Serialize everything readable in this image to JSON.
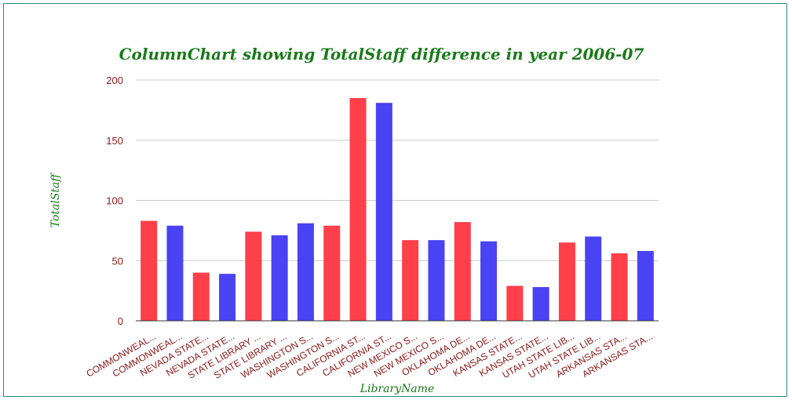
{
  "chart_data": {
    "type": "bar",
    "title": "ColumnChart showing TotalStaff difference in year 2006-07",
    "xlabel": "LibraryName",
    "ylabel": "TotalStaff",
    "ylim": [
      0,
      200
    ],
    "yticks": [
      "0",
      "50",
      "100",
      "150",
      "200"
    ],
    "grid": true,
    "categories": [
      "COMMONWEAL...",
      "COMMONWEAL...",
      "NEVADA STATE...",
      "NEVADA STATE...",
      "STATE LIBRARY ...",
      "STATE LIBRARY ...",
      "WASHINGTON S...",
      "WASHINGTON S...",
      "CALIFORNIA ST...",
      "CALIFORNIA ST...",
      "NEW MEXICO S...",
      "NEW MEXICO S...",
      "OKLAHOMA DE...",
      "OKLAHOMA DE...",
      "KANSAS STATE...",
      "KANSAS STATE...",
      "UTAH STATE LIB...",
      "UTAH STATE LIB...",
      "ARKANSAS STA...",
      "ARKANSAS STA..."
    ],
    "values": [
      83,
      79,
      40,
      39,
      74,
      71,
      81,
      79,
      185,
      181,
      67,
      67,
      82,
      66,
      29,
      28,
      65,
      70,
      56,
      58
    ],
    "colors": [
      "#ff3f4a",
      "#4a43f3",
      "#ff3f4a",
      "#4a43f3",
      "#ff3f4a",
      "#4a43f3",
      "#4a43f3",
      "#ff3f4a",
      "#ff3f4a",
      "#4a43f3",
      "#ff3f4a",
      "#4a43f3",
      "#ff3f4a",
      "#4a43f3",
      "#ff3f4a",
      "#4a43f3",
      "#ff3f4a",
      "#4a43f3",
      "#ff3f4a",
      "#4a43f3"
    ]
  }
}
